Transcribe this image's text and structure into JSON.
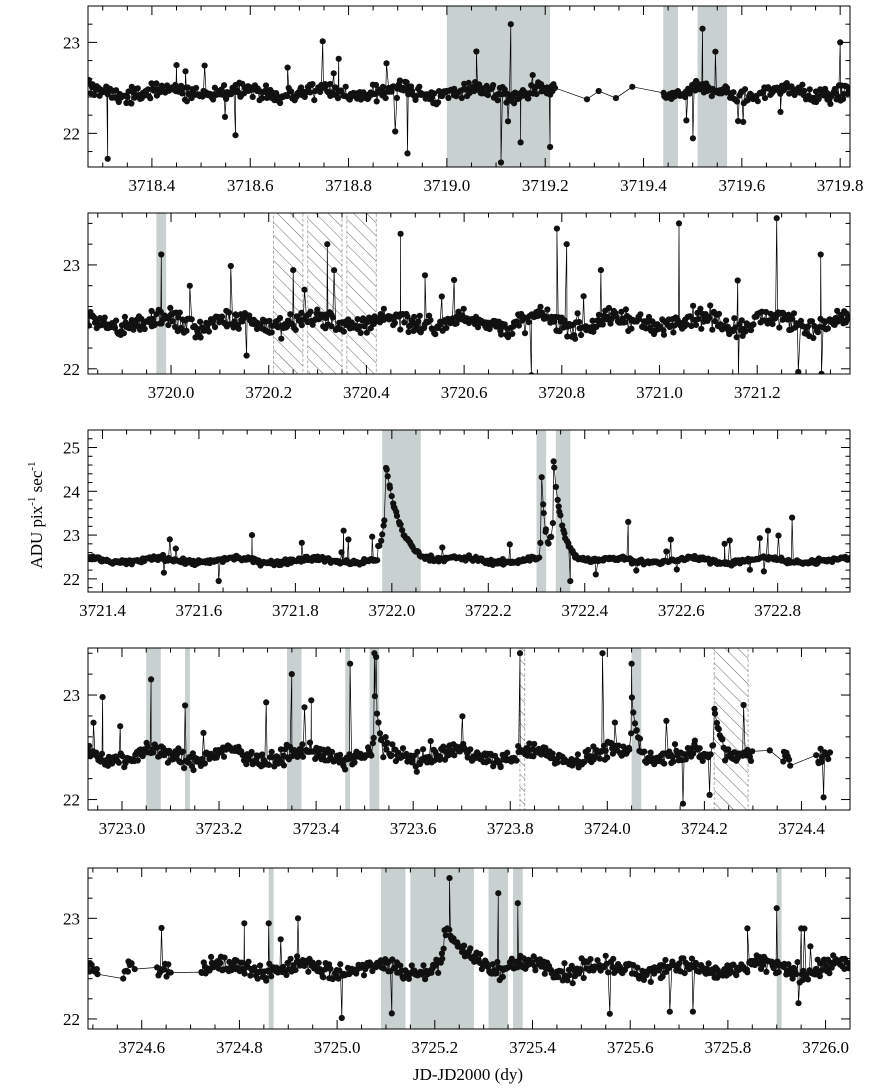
{
  "chart_data": {
    "type": "line",
    "ylabel_main": "ADU pix",
    "ylabel_exp1": "-1",
    "ylabel_mid": " sec",
    "ylabel_exp2": "-1",
    "xlabel": "JD-JD2000 (dy)",
    "colors": {
      "shade": "#c9d0d0",
      "line": "#000000",
      "marker": "#111111"
    },
    "panels": [
      {
        "xlim": [
          3718.27,
          3719.82
        ],
        "ylim": [
          21.63,
          23.4
        ],
        "xticks": [
          3718.4,
          3718.6,
          3718.8,
          3719.0,
          3719.2,
          3719.4,
          3719.6,
          3719.8
        ],
        "xtick_labels": [
          "3718.4",
          "3718.6",
          "3718.8",
          "3719.0",
          "3719.2",
          "3719.4",
          "3719.6",
          "3719.8"
        ],
        "yticks": [
          22,
          23
        ],
        "ytick_labels": [
          "22",
          "23"
        ],
        "shaded": [
          [
            3719.0,
            3719.21
          ],
          [
            3719.44,
            3719.47
          ],
          [
            3719.51,
            3719.57
          ]
        ],
        "hatched": [],
        "gaps": [
          [
            3719.22,
            3719.44
          ]
        ],
        "spikes": [
          {
            "x": 3718.31,
            "y": 21.72
          },
          {
            "x": 3718.45,
            "y": 22.75
          },
          {
            "x": 3718.57,
            "y": 21.98
          },
          {
            "x": 3718.78,
            "y": 22.82
          },
          {
            "x": 3718.92,
            "y": 21.78
          },
          {
            "x": 3719.06,
            "y": 22.9
          },
          {
            "x": 3719.11,
            "y": 21.68
          },
          {
            "x": 3719.13,
            "y": 23.2
          },
          {
            "x": 3719.15,
            "y": 21.9
          },
          {
            "x": 3719.21,
            "y": 21.85
          },
          {
            "x": 3719.52,
            "y": 23.15
          },
          {
            "x": 3719.8,
            "y": 23.0
          }
        ],
        "peaks": [],
        "base": 22.45,
        "noise": 0.09
      },
      {
        "xlim": [
          3719.83,
          3721.39
        ],
        "ylim": [
          21.95,
          23.5
        ],
        "xticks": [
          3720.0,
          3720.2,
          3720.4,
          3720.6,
          3720.8,
          3721.0,
          3721.2
        ],
        "xtick_labels": [
          "3720.0",
          "3720.2",
          "3720.4",
          "3720.6",
          "3720.8",
          "3721.0",
          "3721.2"
        ],
        "yticks": [
          22,
          23
        ],
        "ytick_labels": [
          "22",
          "23"
        ],
        "shaded": [
          [
            3719.97,
            3719.99
          ]
        ],
        "hatched": [
          [
            3720.21,
            3720.27
          ],
          [
            3720.28,
            3720.35
          ],
          [
            3720.36,
            3720.42
          ]
        ],
        "gaps": [],
        "spikes": [
          {
            "x": 3719.98,
            "y": 23.1
          },
          {
            "x": 3720.25,
            "y": 22.95
          },
          {
            "x": 3720.32,
            "y": 23.2
          },
          {
            "x": 3720.47,
            "y": 23.3
          },
          {
            "x": 3720.52,
            "y": 22.9
          },
          {
            "x": 3720.79,
            "y": 23.35
          },
          {
            "x": 3720.81,
            "y": 23.2
          },
          {
            "x": 3720.88,
            "y": 22.95
          },
          {
            "x": 3721.04,
            "y": 23.4
          },
          {
            "x": 3721.16,
            "y": 22.85
          },
          {
            "x": 3721.24,
            "y": 23.45
          },
          {
            "x": 3721.33,
            "y": 23.1
          }
        ],
        "peaks": [],
        "base": 22.45,
        "noise": 0.1
      },
      {
        "xlim": [
          3721.37,
          3722.95
        ],
        "ylim": [
          21.7,
          25.4
        ],
        "xticks": [
          3721.4,
          3721.6,
          3721.8,
          3722.0,
          3722.2,
          3722.4,
          3722.6,
          3722.8
        ],
        "xtick_labels": [
          "3721.4",
          "3721.6",
          "3721.8",
          "3722.0",
          "3722.2",
          "3722.4",
          "3722.6",
          "3722.8"
        ],
        "yticks": [
          22,
          23,
          24,
          25
        ],
        "ytick_labels": [
          "22",
          "23",
          "24",
          "25"
        ],
        "shaded": [
          [
            3721.98,
            3722.02
          ],
          [
            3722.02,
            3722.06
          ],
          [
            3722.3,
            3722.32
          ],
          [
            3722.34,
            3722.37
          ]
        ],
        "hatched": [],
        "gaps": [],
        "spikes": [
          {
            "x": 3721.71,
            "y": 23.0
          },
          {
            "x": 3721.9,
            "y": 23.1
          },
          {
            "x": 3721.91,
            "y": 22.9
          },
          {
            "x": 3722.37,
            "y": 21.95
          },
          {
            "x": 3722.49,
            "y": 23.3
          },
          {
            "x": 3722.69,
            "y": 22.8
          },
          {
            "x": 3722.78,
            "y": 23.1
          },
          {
            "x": 3722.83,
            "y": 23.4
          }
        ],
        "peaks": [
          {
            "x": 3721.985,
            "amp": 2.3,
            "tau": 0.03
          },
          {
            "x": 3722.31,
            "amp": 2.0,
            "tau": 0.008
          },
          {
            "x": 3722.335,
            "amp": 2.2,
            "tau": 0.018
          }
        ],
        "base": 22.42,
        "noise": 0.06
      },
      {
        "xlim": [
          3722.93,
          3724.5
        ],
        "ylim": [
          21.9,
          23.45
        ],
        "xticks": [
          3723.0,
          3723.2,
          3723.4,
          3723.6,
          3723.8,
          3724.0,
          3724.2,
          3724.4
        ],
        "xtick_labels": [
          "3723.0",
          "3723.2",
          "3723.4",
          "3723.6",
          "3723.8",
          "3724.0",
          "3724.2",
          "3724.4"
        ],
        "yticks": [
          22,
          23
        ],
        "ytick_labels": [
          "22",
          "23"
        ],
        "shaded": [
          [
            3723.05,
            3723.08
          ],
          [
            3723.13,
            3723.14
          ],
          [
            3723.34,
            3723.37
          ],
          [
            3723.46,
            3723.47
          ],
          [
            3723.51,
            3723.53
          ],
          [
            3724.05,
            3724.07
          ]
        ],
        "hatched": [
          [
            3723.82,
            3723.83
          ],
          [
            3724.22,
            3724.29
          ]
        ],
        "gaps": [
          [
            3724.3,
            3724.36
          ],
          [
            3724.38,
            3724.43
          ],
          [
            3724.46,
            3724.5
          ]
        ],
        "spikes": [
          {
            "x": 3722.96,
            "y": 22.98
          },
          {
            "x": 3723.06,
            "y": 23.15
          },
          {
            "x": 3723.13,
            "y": 22.9
          },
          {
            "x": 3723.35,
            "y": 23.2
          },
          {
            "x": 3723.39,
            "y": 22.95
          },
          {
            "x": 3723.47,
            "y": 23.3
          },
          {
            "x": 3723.52,
            "y": 23.4
          },
          {
            "x": 3723.82,
            "y": 23.4
          },
          {
            "x": 3723.99,
            "y": 23.4
          },
          {
            "x": 3724.05,
            "y": 23.3
          }
        ],
        "peaks": [
          {
            "x": 3723.52,
            "amp": 0.55,
            "tau": 0.01
          },
          {
            "x": 3724.05,
            "amp": 0.6,
            "tau": 0.012
          },
          {
            "x": 3724.22,
            "amp": 0.5,
            "tau": 0.015
          }
        ],
        "base": 22.42,
        "noise": 0.08
      },
      {
        "xlim": [
          3724.49,
          3726.05
        ],
        "ylim": [
          21.9,
          23.5
        ],
        "xticks": [
          3724.6,
          3724.8,
          3725.0,
          3725.2,
          3725.4,
          3725.6,
          3725.8,
          3726.0
        ],
        "xtick_labels": [
          "3724.6",
          "3724.8",
          "3725.0",
          "3725.2",
          "3725.4",
          "3725.6",
          "3725.8",
          "3726.0"
        ],
        "yticks": [
          22,
          23
        ],
        "ytick_labels": [
          "22",
          "23"
        ],
        "shaded": [
          [
            3724.86,
            3724.87
          ],
          [
            3725.09,
            3725.14
          ],
          [
            3725.15,
            3725.28
          ],
          [
            3725.31,
            3725.35
          ],
          [
            3725.36,
            3725.38
          ],
          [
            3725.9,
            3725.91
          ]
        ],
        "hatched": [],
        "gaps": [
          [
            3724.51,
            3724.56
          ],
          [
            3724.58,
            3724.63
          ],
          [
            3724.66,
            3724.72
          ]
        ],
        "spikes": [
          {
            "x": 3724.81,
            "y": 22.95
          },
          {
            "x": 3724.86,
            "y": 22.95
          },
          {
            "x": 3724.92,
            "y": 23.0
          },
          {
            "x": 3725.23,
            "y": 23.4
          },
          {
            "x": 3725.33,
            "y": 23.25
          },
          {
            "x": 3725.37,
            "y": 23.15
          },
          {
            "x": 3725.84,
            "y": 22.9
          },
          {
            "x": 3725.9,
            "y": 23.1
          },
          {
            "x": 3725.95,
            "y": 22.9
          }
        ],
        "peaks": [
          {
            "x": 3725.22,
            "amp": 0.35,
            "tau": 0.05
          }
        ],
        "base": 22.5,
        "noise": 0.09
      }
    ]
  }
}
